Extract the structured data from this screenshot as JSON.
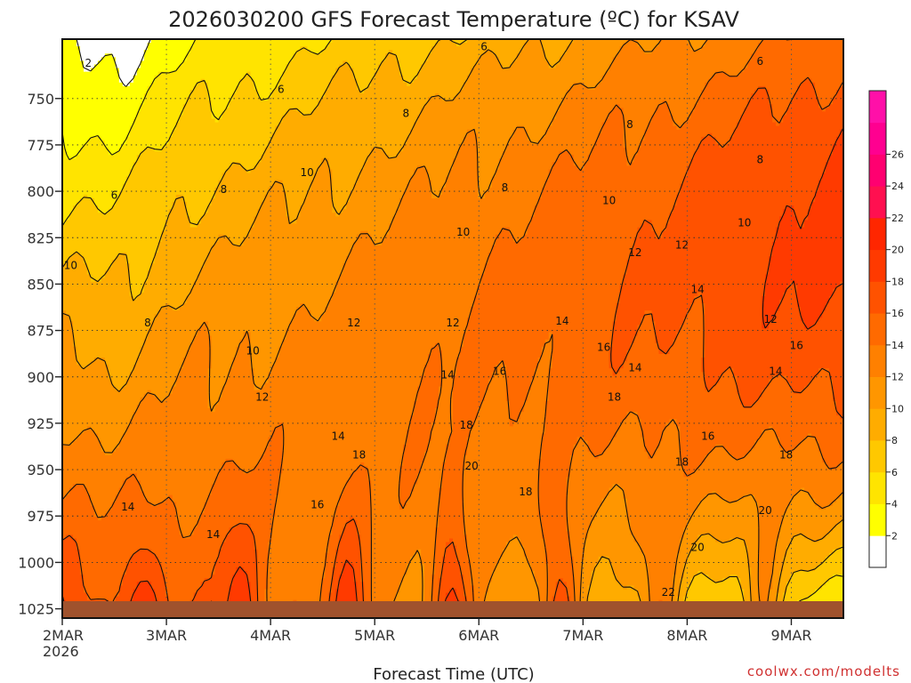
{
  "chart_data": {
    "type": "heatmap",
    "title": "2026030200 GFS Forecast Temperature (ºC) for KSAV",
    "xlabel": "Forecast Time (UTC)",
    "ylabel": "",
    "x_ticks": [
      "2MAR",
      "3MAR",
      "4MAR",
      "5MAR",
      "6MAR",
      "7MAR",
      "8MAR",
      "9MAR"
    ],
    "x_tick_year": "2026",
    "xlim_days": [
      0,
      7.5
    ],
    "y_ticks": [
      "750",
      "775",
      "800",
      "825",
      "850",
      "875",
      "900",
      "925",
      "950",
      "975",
      "1000",
      "1025"
    ],
    "y_tick_values": [
      750,
      775,
      800,
      825,
      850,
      875,
      900,
      925,
      950,
      975,
      1000,
      1025
    ],
    "ylim": [
      718,
      1030
    ],
    "y_inverted": true,
    "grid": true,
    "colorbar": {
      "ticks": [
        "2",
        "4",
        "6",
        "8",
        "10",
        "12",
        "14",
        "16",
        "18",
        "20",
        "22",
        "24",
        "26"
      ],
      "levels": [
        0,
        2,
        4,
        6,
        8,
        10,
        12,
        14,
        16,
        18,
        20,
        22,
        24,
        26,
        28
      ],
      "colors": [
        "#ffffff",
        "#ffff00",
        "#ffe400",
        "#ffc800",
        "#ffac00",
        "#ff9600",
        "#ff8000",
        "#ff6a00",
        "#ff5200",
        "#ff3a00",
        "#ff2600",
        "#ff1050",
        "#ff0070",
        "#ff0090",
        "#ff10a8"
      ]
    },
    "contour_labels": [
      {
        "text": "2",
        "day": 0.25,
        "p": 731
      },
      {
        "text": "6",
        "day": 4.05,
        "p": 722
      },
      {
        "text": "6",
        "day": 6.7,
        "p": 730
      },
      {
        "text": "6",
        "day": 2.1,
        "p": 745
      },
      {
        "text": "8",
        "day": 3.3,
        "p": 758
      },
      {
        "text": "8",
        "day": 5.45,
        "p": 764
      },
      {
        "text": "8",
        "day": 6.7,
        "p": 783
      },
      {
        "text": "6",
        "day": 0.5,
        "p": 802
      },
      {
        "text": "8",
        "day": 1.55,
        "p": 799
      },
      {
        "text": "10",
        "day": 2.35,
        "p": 790
      },
      {
        "text": "8",
        "day": 4.25,
        "p": 798
      },
      {
        "text": "10",
        "day": 5.25,
        "p": 805
      },
      {
        "text": "10",
        "day": 6.55,
        "p": 817
      },
      {
        "text": "10",
        "day": 3.85,
        "p": 822
      },
      {
        "text": "12",
        "day": 5.5,
        "p": 833
      },
      {
        "text": "12",
        "day": 5.95,
        "p": 829
      },
      {
        "text": "10",
        "day": 0.08,
        "p": 840
      },
      {
        "text": "14",
        "day": 6.1,
        "p": 853
      },
      {
        "text": "8",
        "day": 0.82,
        "p": 871
      },
      {
        "text": "12",
        "day": 3.75,
        "p": 871
      },
      {
        "text": "14",
        "day": 4.8,
        "p": 870
      },
      {
        "text": "12",
        "day": 2.8,
        "p": 871
      },
      {
        "text": "12",
        "day": 6.8,
        "p": 869
      },
      {
        "text": "16",
        "day": 5.2,
        "p": 884
      },
      {
        "text": "16",
        "day": 7.05,
        "p": 883
      },
      {
        "text": "10",
        "day": 1.83,
        "p": 886
      },
      {
        "text": "14",
        "day": 3.7,
        "p": 899
      },
      {
        "text": "16",
        "day": 4.2,
        "p": 897
      },
      {
        "text": "14",
        "day": 5.5,
        "p": 895
      },
      {
        "text": "14",
        "day": 6.85,
        "p": 897
      },
      {
        "text": "18",
        "day": 5.3,
        "p": 911
      },
      {
        "text": "12",
        "day": 1.92,
        "p": 911
      },
      {
        "text": "18",
        "day": 3.88,
        "p": 926
      },
      {
        "text": "14",
        "day": 2.65,
        "p": 932
      },
      {
        "text": "16",
        "day": 6.2,
        "p": 932
      },
      {
        "text": "18",
        "day": 2.85,
        "p": 942
      },
      {
        "text": "20",
        "day": 3.93,
        "p": 948
      },
      {
        "text": "18",
        "day": 5.95,
        "p": 946
      },
      {
        "text": "18",
        "day": 6.95,
        "p": 942
      },
      {
        "text": "18",
        "day": 4.45,
        "p": 962
      },
      {
        "text": "16",
        "day": 2.45,
        "p": 969
      },
      {
        "text": "14",
        "day": 0.63,
        "p": 970
      },
      {
        "text": "20",
        "day": 6.75,
        "p": 972
      },
      {
        "text": "14",
        "day": 1.45,
        "p": 985
      },
      {
        "text": "20",
        "day": 6.1,
        "p": 992
      },
      {
        "text": "22",
        "day": 5.82,
        "p": 1016
      }
    ],
    "credit": "coolwx.com/modelts"
  }
}
